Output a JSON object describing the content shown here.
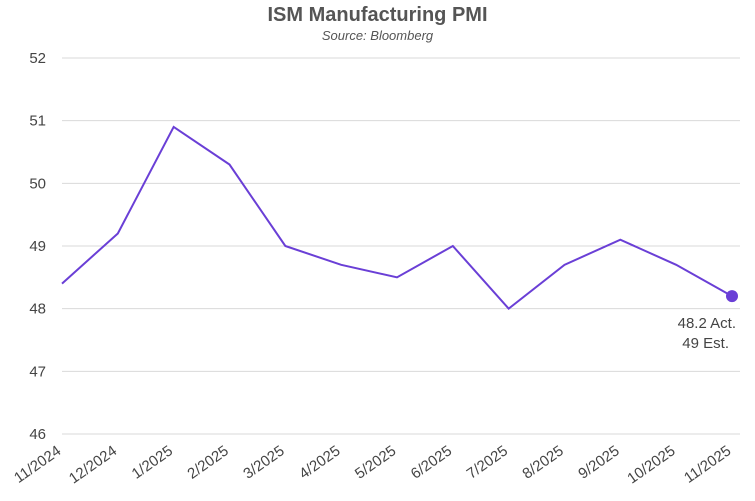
{
  "chart_data": {
    "type": "line",
    "title": "ISM Manufacturing PMI",
    "subtitle": "Source: Bloomberg",
    "xlabel": "",
    "ylabel": "",
    "categories": [
      "11/2024",
      "12/2024",
      "1/2025",
      "2/2025",
      "3/2025",
      "4/2025",
      "5/2025",
      "6/2025",
      "7/2025",
      "8/2025",
      "9/2025",
      "10/2025",
      "11/2025"
    ],
    "series": [
      {
        "values": [
          48.4,
          49.2,
          50.9,
          50.3,
          49.0,
          48.7,
          48.5,
          49.0,
          48.0,
          48.7,
          49.1,
          48.7,
          48.2
        ]
      }
    ],
    "ylim": [
      46,
      52
    ],
    "yticks": [
      46,
      47,
      48,
      49,
      50,
      51,
      52
    ],
    "grid": true,
    "legend": "none",
    "line_color": "#6a3fd6",
    "annotations": {
      "actual": "48.2 Act.",
      "estimate": "49 Est."
    }
  }
}
